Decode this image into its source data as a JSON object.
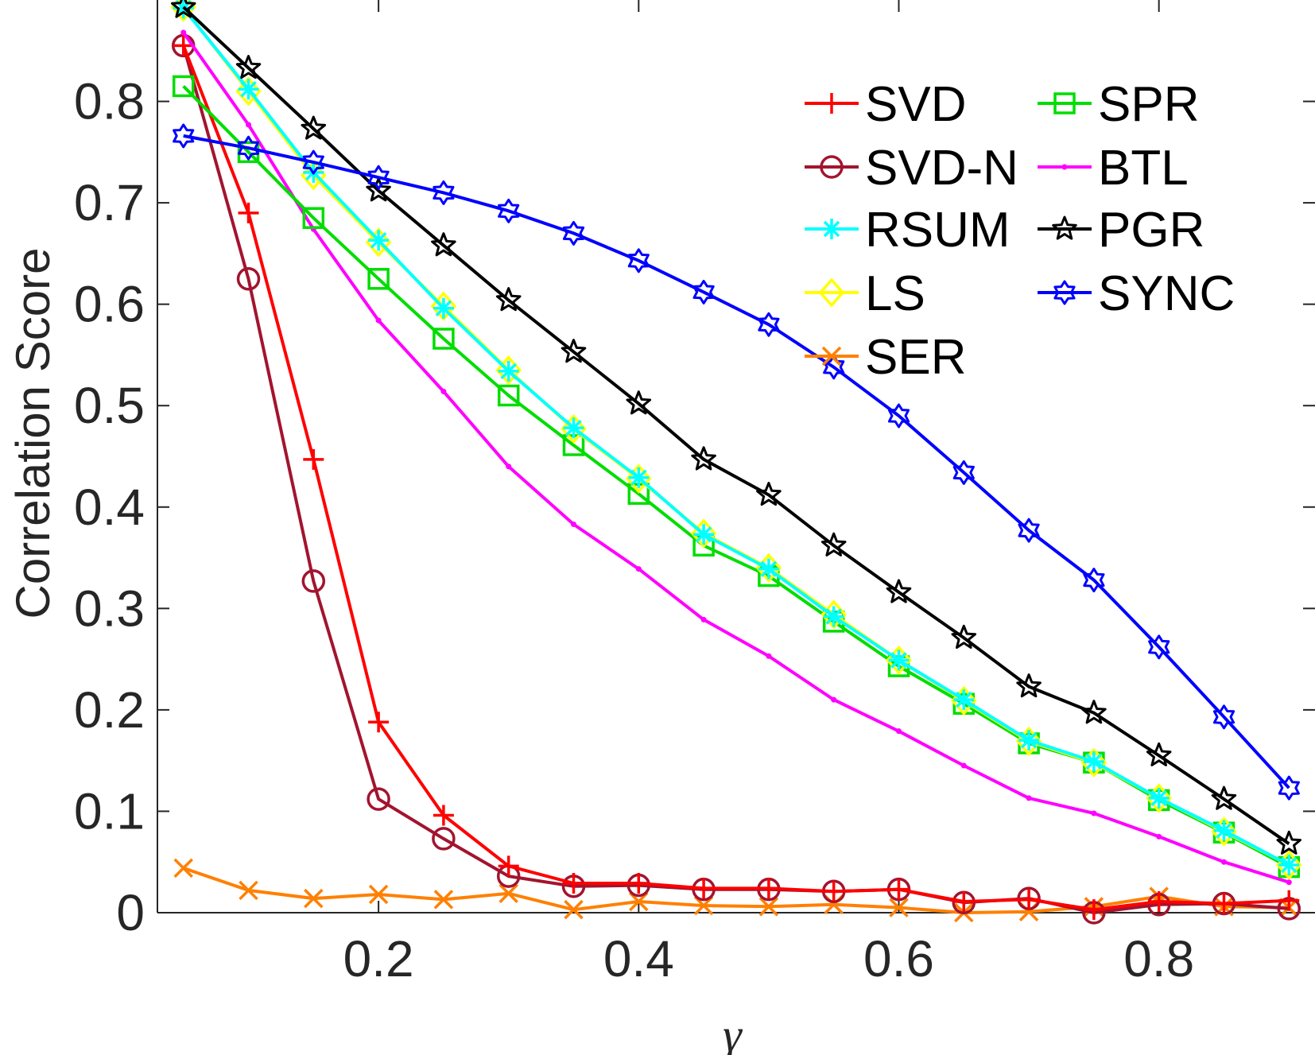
{
  "chart_data": {
    "type": "line",
    "title": "",
    "xlabel": "γ",
    "ylabel": "Correlation Score",
    "xlim": [
      0.03,
      0.92
    ],
    "ylim": [
      0,
      0.9
    ],
    "xticks": [
      0.2,
      0.4,
      0.6,
      0.8
    ],
    "xtick_labels": [
      "0.2",
      "0.4",
      "0.6",
      "0.8"
    ],
    "yticks": [
      0,
      0.1,
      0.2,
      0.3,
      0.4,
      0.5,
      0.6,
      0.7,
      0.8
    ],
    "ytick_labels": [
      "0",
      "0.1",
      "0.2",
      "0.3",
      "0.4",
      "0.5",
      "0.6",
      "0.7",
      "0.8"
    ],
    "grid": false,
    "legend_position": "top-right",
    "x": [
      0.05,
      0.1,
      0.15,
      0.2,
      0.25,
      0.3,
      0.35,
      0.4,
      0.45,
      0.5,
      0.55,
      0.6,
      0.65,
      0.7,
      0.75,
      0.8,
      0.85,
      0.9
    ],
    "series": [
      {
        "name": "SVD",
        "color": "#ff0000",
        "marker": "plus",
        "values": [
          0.855,
          0.69,
          0.447,
          0.188,
          0.096,
          0.046,
          0.029,
          0.029,
          0.024,
          0.024,
          0.021,
          0.023,
          0.011,
          0.013,
          0.003,
          0.011,
          0.009,
          0.012
        ]
      },
      {
        "name": "SVD-N",
        "color": "#a2142f",
        "marker": "circle",
        "values": [
          0.855,
          0.625,
          0.327,
          0.112,
          0.073,
          0.036,
          0.026,
          0.027,
          0.023,
          0.023,
          0.021,
          0.023,
          0.01,
          0.014,
          0.0,
          0.008,
          0.009,
          0.004
        ]
      },
      {
        "name": "RSUM",
        "color": "#00ffff",
        "marker": "asterisk",
        "values": [
          0.892,
          0.812,
          0.73,
          0.663,
          0.596,
          0.534,
          0.478,
          0.429,
          0.373,
          0.339,
          0.292,
          0.249,
          0.21,
          0.17,
          0.149,
          0.113,
          0.081,
          0.047
        ]
      },
      {
        "name": "LS",
        "color": "#ffff00",
        "marker": "diamond",
        "values": [
          0.893,
          0.81,
          0.727,
          0.661,
          0.598,
          0.535,
          0.477,
          0.428,
          0.374,
          0.34,
          0.294,
          0.249,
          0.209,
          0.169,
          0.148,
          0.113,
          0.08,
          0.047
        ]
      },
      {
        "name": "SER",
        "color": "#ff8000",
        "marker": "x",
        "values": [
          0.044,
          0.022,
          0.014,
          0.018,
          0.013,
          0.019,
          0.003,
          0.011,
          0.007,
          0.006,
          0.008,
          0.005,
          0.0,
          0.001,
          0.006,
          0.016,
          0.006,
          0.005
        ]
      },
      {
        "name": "SPR",
        "color": "#00dd00",
        "marker": "square",
        "values": [
          0.815,
          0.75,
          0.685,
          0.625,
          0.566,
          0.51,
          0.461,
          0.413,
          0.362,
          0.332,
          0.287,
          0.243,
          0.206,
          0.167,
          0.148,
          0.111,
          0.079,
          0.045
        ]
      },
      {
        "name": "BTL",
        "color": "#ff00ff",
        "marker": "dot",
        "values": [
          0.868,
          0.777,
          0.674,
          0.584,
          0.514,
          0.44,
          0.383,
          0.339,
          0.289,
          0.253,
          0.21,
          0.179,
          0.145,
          0.113,
          0.098,
          0.075,
          0.05,
          0.03
        ]
      },
      {
        "name": "PGR",
        "color": "#000000",
        "marker": "star",
        "values": [
          0.893,
          0.833,
          0.773,
          0.712,
          0.658,
          0.604,
          0.553,
          0.502,
          0.447,
          0.412,
          0.362,
          0.316,
          0.271,
          0.223,
          0.197,
          0.155,
          0.112,
          0.068
        ]
      },
      {
        "name": "SYNC",
        "color": "#0000ff",
        "marker": "hexagram",
        "values": [
          0.766,
          0.754,
          0.74,
          0.725,
          0.71,
          0.692,
          0.67,
          0.643,
          0.612,
          0.58,
          0.538,
          0.49,
          0.434,
          0.377,
          0.328,
          0.262,
          0.193,
          0.123
        ]
      }
    ]
  }
}
